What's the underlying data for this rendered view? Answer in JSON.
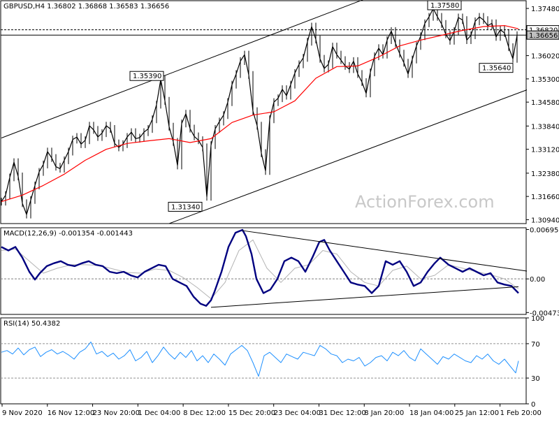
{
  "chart_data": [
    {
      "type": "line",
      "title": "GBPUSD,H4 1.36802 1.36868 1.36583 1.36656",
      "symbol": "GBPUSD",
      "timeframe": "H4",
      "ohlc": {
        "open": 1.36802,
        "high": 1.36868,
        "low": 1.36583,
        "close": 1.36656
      },
      "x_labels": [
        "9 Nov 2020",
        "16 Nov 12:00",
        "23 Nov 20:00",
        "1 Dec 04:00",
        "8 Dec 12:00",
        "15 Dec 20:00",
        "23 Dec 04:00",
        "31 Dec 12:00",
        "8 Jan 20:00",
        "18 Jan 04:00",
        "25 Jan 12:00",
        "1 Feb 20:00"
      ],
      "y_ticks": [
        "1.37480",
        "1.36750",
        "1.36020",
        "1.35300",
        "1.34580",
        "1.33840",
        "1.33120",
        "1.32380",
        "1.31660",
        "1.30940"
      ],
      "ylim": [
        1.3082,
        1.3772
      ],
      "price_labels": [
        "1.36820",
        "1.36656"
      ],
      "price_lines": [
        1.3682,
        1.36656
      ],
      "moving_average_color": "#ff0000",
      "annotations": [
        {
          "text": "1.35390",
          "value": 1.3539
        },
        {
          "text": "1.31340",
          "value": 1.3134
        },
        {
          "text": "1.37580",
          "value": 1.3758
        },
        {
          "text": "1.35640",
          "value": 1.3564
        }
      ],
      "price_series": {
        "x": [
          0,
          6,
          12,
          18,
          24,
          30,
          36,
          42,
          48,
          54,
          60,
          66,
          72,
          78,
          84,
          90,
          96,
          102,
          108,
          114,
          120,
          126,
          132,
          138,
          144,
          150,
          156,
          162,
          168,
          174,
          180,
          186,
          192,
          198,
          204,
          210,
          216,
          222,
          228,
          234,
          240,
          246,
          252,
          258,
          264,
          270,
          276,
          282,
          288,
          294,
          300,
          306,
          312,
          318,
          324,
          330,
          336,
          342,
          348,
          354,
          360,
          366,
          372,
          378,
          384,
          390,
          396,
          402,
          408,
          414,
          420,
          426,
          432,
          438,
          444,
          450,
          456,
          462,
          468,
          474,
          480,
          486,
          492,
          498,
          504,
          510,
          516,
          522,
          528,
          534,
          540,
          546,
          552,
          558,
          564,
          570,
          576,
          582,
          588,
          594,
          600,
          606,
          612,
          618,
          624,
          630,
          636,
          642,
          648,
          654,
          660,
          666,
          672,
          678,
          684,
          690,
          696,
          702,
          708,
          714,
          720,
          726,
          732,
          738
        ],
        "y": [
          1.315,
          1.317,
          1.3225,
          1.3272,
          1.3228,
          1.3145,
          1.311,
          1.3155,
          1.32,
          1.3242,
          1.3265,
          1.3305,
          1.3285,
          1.3258,
          1.3252,
          1.3278,
          1.3305,
          1.3342,
          1.335,
          1.3328,
          1.334,
          1.3385,
          1.3372,
          1.335,
          1.3362,
          1.3385,
          1.3375,
          1.333,
          1.3318,
          1.3328,
          1.335,
          1.3365,
          1.3345,
          1.3348,
          1.3365,
          1.3375,
          1.3405,
          1.345,
          1.3528,
          1.3462,
          1.3382,
          1.3335,
          1.3262,
          1.3392,
          1.3422,
          1.3376,
          1.3352,
          1.334,
          1.3318,
          1.3165,
          1.3325,
          1.3375,
          1.3398,
          1.3418,
          1.3458,
          1.3512,
          1.3545,
          1.3585,
          1.3605,
          1.3542,
          1.343,
          1.3385,
          1.33,
          1.3245,
          1.3405,
          1.3458,
          1.347,
          1.3498,
          1.3478,
          1.3512,
          1.3548,
          1.3575,
          1.3595,
          1.3645,
          1.3692,
          1.3652,
          1.3592,
          1.3562,
          1.3575,
          1.363,
          1.3605,
          1.3588,
          1.357,
          1.356,
          1.3585,
          1.3545,
          1.352,
          1.3485,
          1.355,
          1.36,
          1.3625,
          1.3605,
          1.365,
          1.3678,
          1.364,
          1.3608,
          1.358,
          1.3545,
          1.359,
          1.3632,
          1.3662,
          1.3702,
          1.3722,
          1.3748,
          1.3722,
          1.37,
          1.3668,
          1.3648,
          1.3678,
          1.372,
          1.3712,
          1.365,
          1.3665,
          1.3708,
          1.3722,
          1.3712,
          1.3695,
          1.3702,
          1.366,
          1.3682,
          1.3672,
          1.3628,
          1.3592,
          1.3665
        ]
      },
      "ma_series": {
        "x": [
          0,
          30,
          60,
          90,
          120,
          150,
          180,
          210,
          240,
          270,
          300,
          330,
          360,
          390,
          420,
          450,
          480,
          510,
          540,
          570,
          600,
          630,
          660,
          690,
          720,
          740
        ],
        "y": [
          1.315,
          1.317,
          1.32,
          1.3235,
          1.3278,
          1.3312,
          1.333,
          1.3338,
          1.3345,
          1.3333,
          1.3345,
          1.3395,
          1.3418,
          1.3428,
          1.3462,
          1.3532,
          1.3568,
          1.357,
          1.3598,
          1.3632,
          1.365,
          1.3665,
          1.368,
          1.3692,
          1.3695,
          1.3685
        ]
      },
      "trendlines": [
        {
          "name": "upper channel",
          "points": [
            [
              0,
              1.3347
            ],
            [
              555,
              1.3806
            ]
          ]
        },
        {
          "name": "lower channel",
          "points": [
            [
              240,
              1.3082
            ],
            [
              752,
              1.3496
            ]
          ]
        }
      ],
      "watermark": "ActionForex.com"
    },
    {
      "type": "line",
      "title": "MACD(12,26,9) -0.001354 -0.001443",
      "y_ticks": [
        "0.006956",
        "0.00",
        "-0.004736"
      ],
      "ylim": [
        -0.005,
        0.0072
      ],
      "zero_line": 0,
      "macd_series": {
        "x": [
          0,
          10,
          20,
          30,
          40,
          48,
          55,
          65,
          75,
          85,
          95,
          105,
          115,
          125,
          135,
          145,
          155,
          165,
          175,
          185,
          195,
          205,
          215,
          225,
          235,
          245,
          255,
          265,
          275,
          285,
          293,
          300,
          305,
          315,
          325,
          335,
          345,
          350,
          358,
          365,
          375,
          385,
          395,
          405,
          415,
          425,
          435,
          445,
          455,
          462,
          470,
          480,
          490,
          500,
          510,
          520,
          530,
          540,
          550,
          560,
          570,
          580,
          590,
          600,
          610,
          620,
          628,
          640,
          650,
          660,
          670,
          680,
          690,
          700,
          710,
          720,
          730,
          740
        ],
        "y": [
          0.0045,
          0.004,
          0.0045,
          0.003,
          0.001,
          -0.0001,
          0.0008,
          0.0018,
          0.0022,
          0.0025,
          0.002,
          0.0018,
          0.0022,
          0.0025,
          0.002,
          0.0018,
          0.001,
          0.0008,
          0.001,
          0.0005,
          0.0002,
          0.001,
          0.0015,
          0.002,
          0.0018,
          0.0,
          -0.0005,
          -0.001,
          -0.0025,
          -0.0035,
          -0.0038,
          -0.003,
          -0.0018,
          0.001,
          0.0045,
          0.0065,
          0.0069,
          0.006,
          0.0035,
          0.0,
          -0.002,
          -0.0015,
          0.0,
          0.0025,
          0.003,
          0.0025,
          0.001,
          0.003,
          0.0052,
          0.0055,
          0.004,
          0.0025,
          0.001,
          -0.0005,
          -0.0008,
          -0.001,
          -0.002,
          -0.001,
          0.0025,
          0.002,
          0.0025,
          0.001,
          -0.001,
          -0.0005,
          0.001,
          0.0022,
          0.003,
          0.002,
          0.0015,
          0.001,
          0.0015,
          0.001,
          0.0005,
          0.0008,
          -0.0005,
          -0.0008,
          -0.001,
          -0.002
        ]
      },
      "signal_series": {
        "x": [
          0,
          20,
          40,
          60,
          80,
          100,
          120,
          140,
          160,
          180,
          200,
          220,
          240,
          260,
          280,
          300,
          320,
          340,
          360,
          380,
          400,
          420,
          440,
          460,
          480,
          500,
          520,
          540,
          560,
          580,
          600,
          620,
          640,
          660,
          680,
          700,
          720,
          740
        ],
        "y": [
          0.004,
          0.0042,
          0.0025,
          0.0008,
          0.0015,
          0.002,
          0.002,
          0.0019,
          0.0014,
          0.0009,
          0.0008,
          0.0014,
          0.0012,
          0.0002,
          -0.0012,
          -0.0028,
          -0.0005,
          0.004,
          0.0055,
          0.0015,
          -0.0005,
          0.0015,
          0.002,
          0.004,
          0.0035,
          0.001,
          -0.0005,
          -0.001,
          0.0012,
          0.0018,
          0.0,
          0.0005,
          0.002,
          0.0015,
          0.001,
          0.0006,
          0.0,
          -0.0014
        ]
      },
      "signal_color": "#b4b4b4",
      "macd_color": "#000080",
      "trendlines": [
        {
          "name": "upper",
          "points": [
            [
              345,
              0.0068
            ],
            [
              752,
              0.0011
            ]
          ]
        },
        {
          "name": "lower",
          "points": [
            [
              300,
              -0.004
            ],
            [
              740,
              -0.0011
            ]
          ]
        }
      ]
    },
    {
      "type": "line",
      "title": "RSI(14) 50.4382",
      "y_ticks": [
        "100",
        "70",
        "30",
        "0"
      ],
      "ylim": [
        0,
        100
      ],
      "levels": [
        70,
        30
      ],
      "line_color": "#1e90ff",
      "rsi_series": {
        "x": [
          0,
          8,
          16,
          24,
          32,
          40,
          48,
          56,
          64,
          72,
          80,
          88,
          96,
          104,
          112,
          120,
          128,
          136,
          144,
          152,
          160,
          168,
          176,
          184,
          192,
          200,
          208,
          216,
          224,
          232,
          240,
          248,
          256,
          264,
          272,
          280,
          288,
          296,
          304,
          312,
          320,
          328,
          336,
          344,
          352,
          360,
          368,
          376,
          384,
          392,
          400,
          408,
          416,
          424,
          432,
          440,
          448,
          456,
          464,
          472,
          480,
          488,
          496,
          504,
          512,
          520,
          528,
          536,
          544,
          552,
          560,
          568,
          576,
          584,
          592,
          600,
          608,
          616,
          624,
          632,
          640,
          648,
          656,
          664,
          672,
          680,
          688,
          696,
          704,
          712,
          720,
          728,
          736,
          740
        ],
        "y": [
          60,
          62,
          58,
          65,
          57,
          63,
          66,
          55,
          60,
          63,
          58,
          61,
          57,
          52,
          60,
          64,
          72,
          58,
          61,
          55,
          59,
          52,
          56,
          63,
          50,
          54,
          61,
          48,
          56,
          66,
          58,
          52,
          60,
          54,
          62,
          50,
          56,
          48,
          58,
          52,
          45,
          58,
          63,
          68,
          62,
          48,
          32,
          56,
          60,
          54,
          48,
          58,
          55,
          52,
          60,
          58,
          56,
          68,
          64,
          58,
          56,
          48,
          52,
          50,
          54,
          44,
          48,
          54,
          56,
          50,
          60,
          56,
          62,
          54,
          50,
          64,
          58,
          52,
          46,
          55,
          52,
          58,
          54,
          50,
          48,
          56,
          52,
          58,
          50,
          46,
          52,
          44,
          36,
          50
        ]
      }
    }
  ]
}
